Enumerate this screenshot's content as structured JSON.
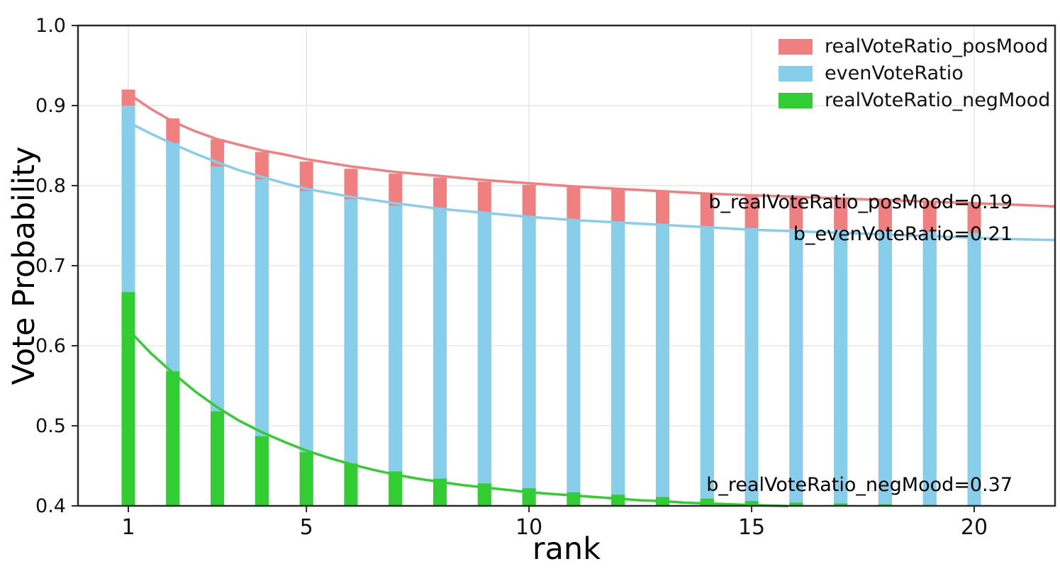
{
  "chart_data": {
    "type": "bar",
    "title": "",
    "xlabel": "rank",
    "ylabel": "Vote Probability",
    "xlim": [
      -0.15,
      21.8
    ],
    "ylim": [
      0.4,
      1.0
    ],
    "grid": true,
    "legend_position": "upper right",
    "x_ticks": [
      1,
      5,
      10,
      15,
      20
    ],
    "y_ticks": [
      0.4,
      0.5,
      0.6,
      0.7,
      0.8,
      0.9,
      1.0
    ],
    "categories": [
      1,
      2,
      3,
      4,
      5,
      6,
      7,
      8,
      9,
      10,
      11,
      12,
      13,
      14,
      15,
      16,
      17,
      18,
      19,
      20
    ],
    "series": [
      {
        "name": "realVoteRatio_posMood",
        "color": "#f08080",
        "values": [
          0.92,
          0.884,
          0.858,
          0.842,
          0.83,
          0.821,
          0.815,
          0.81,
          0.805,
          0.801,
          0.798,
          0.795,
          0.793,
          0.791,
          0.789,
          0.786,
          0.784,
          0.782,
          0.78,
          0.779
        ]
      },
      {
        "name": "evenVoteRatio",
        "color": "#87ceeb",
        "values": [
          0.9,
          0.853,
          0.824,
          0.808,
          0.793,
          0.783,
          0.775,
          0.77,
          0.765,
          0.762,
          0.758,
          0.755,
          0.752,
          0.749,
          0.747,
          0.746,
          0.745,
          0.744,
          0.742,
          0.741
        ]
      },
      {
        "name": "realVoteRatio_negMood",
        "color": "#32cd32",
        "values": [
          0.667,
          0.568,
          0.518,
          0.487,
          0.467,
          0.453,
          0.443,
          0.434,
          0.428,
          0.422,
          0.417,
          0.414,
          0.411,
          0.409,
          0.406,
          0.404,
          0.403,
          0.402,
          0.401,
          0.401
        ]
      }
    ],
    "fit_curves": [
      {
        "series": "realVoteRatio_posMood",
        "b": 0.19,
        "color": "#f08080",
        "points": [
          [
            1,
            0.915
          ],
          [
            1.5,
            0.896
          ],
          [
            2,
            0.88
          ],
          [
            2.5,
            0.868
          ],
          [
            3,
            0.858
          ],
          [
            3.5,
            0.851
          ],
          [
            4,
            0.844
          ],
          [
            4.5,
            0.839
          ],
          [
            5,
            0.833
          ],
          [
            6,
            0.824
          ],
          [
            7,
            0.817
          ],
          [
            8,
            0.812
          ],
          [
            9,
            0.807
          ],
          [
            10,
            0.803
          ],
          [
            11,
            0.799
          ],
          [
            12,
            0.796
          ],
          [
            13,
            0.793
          ],
          [
            14,
            0.79
          ],
          [
            15,
            0.788
          ],
          [
            16,
            0.786
          ],
          [
            17,
            0.784
          ],
          [
            18,
            0.782
          ],
          [
            19,
            0.78
          ],
          [
            20,
            0.778
          ],
          [
            21,
            0.776
          ],
          [
            21.8,
            0.774
          ]
        ]
      },
      {
        "series": "evenVoteRatio",
        "b": 0.21,
        "color": "#87ceeb",
        "points": [
          [
            1,
            0.879
          ],
          [
            1.5,
            0.865
          ],
          [
            2,
            0.852
          ],
          [
            2.5,
            0.84
          ],
          [
            3,
            0.829
          ],
          [
            3.5,
            0.819
          ],
          [
            4,
            0.811
          ],
          [
            4.5,
            0.803
          ],
          [
            5,
            0.796
          ],
          [
            6,
            0.786
          ],
          [
            7,
            0.778
          ],
          [
            8,
            0.771
          ],
          [
            9,
            0.766
          ],
          [
            10,
            0.761
          ],
          [
            11,
            0.757
          ],
          [
            12,
            0.754
          ],
          [
            13,
            0.751
          ],
          [
            14,
            0.748
          ],
          [
            15,
            0.745
          ],
          [
            16,
            0.743
          ],
          [
            17,
            0.741
          ],
          [
            18,
            0.739
          ],
          [
            19,
            0.737
          ],
          [
            20,
            0.735
          ],
          [
            21,
            0.733
          ],
          [
            21.8,
            0.732
          ]
        ]
      },
      {
        "series": "realVoteRatio_negMood",
        "b": 0.37,
        "color": "#32cd32",
        "points": [
          [
            1,
            0.62
          ],
          [
            1.5,
            0.591
          ],
          [
            2,
            0.566
          ],
          [
            2.5,
            0.543
          ],
          [
            3,
            0.523
          ],
          [
            3.5,
            0.506
          ],
          [
            4,
            0.492
          ],
          [
            4.5,
            0.48
          ],
          [
            5,
            0.469
          ],
          [
            5.5,
            0.46
          ],
          [
            6,
            0.452
          ],
          [
            6.5,
            0.445
          ],
          [
            7,
            0.439
          ],
          [
            7.5,
            0.434
          ],
          [
            8,
            0.43
          ],
          [
            8.5,
            0.426
          ],
          [
            9,
            0.423
          ],
          [
            9.5,
            0.42
          ],
          [
            10,
            0.417
          ],
          [
            10.5,
            0.415
          ],
          [
            11,
            0.413
          ],
          [
            11.5,
            0.411
          ],
          [
            12,
            0.409
          ],
          [
            12.5,
            0.407
          ],
          [
            13,
            0.406
          ],
          [
            13.5,
            0.404
          ],
          [
            14,
            0.403
          ],
          [
            14.5,
            0.402
          ],
          [
            15,
            0.401
          ],
          [
            15.5,
            0.4002
          ],
          [
            15.8,
            0.3998
          ]
        ]
      }
    ],
    "annotations": [
      {
        "text": "b_realVoteRatio_posMood=0.19"
      },
      {
        "text": "b_evenVoteRatio=0.21"
      },
      {
        "text": "b_realVoteRatio_negMood=0.37"
      }
    ]
  },
  "colors": {
    "pos_mood": "#f08080",
    "even": "#87ceeb",
    "neg_mood": "#32cd32",
    "grid": "#e7e7e7",
    "spine": "#2a2a2a",
    "text": "#111111"
  }
}
